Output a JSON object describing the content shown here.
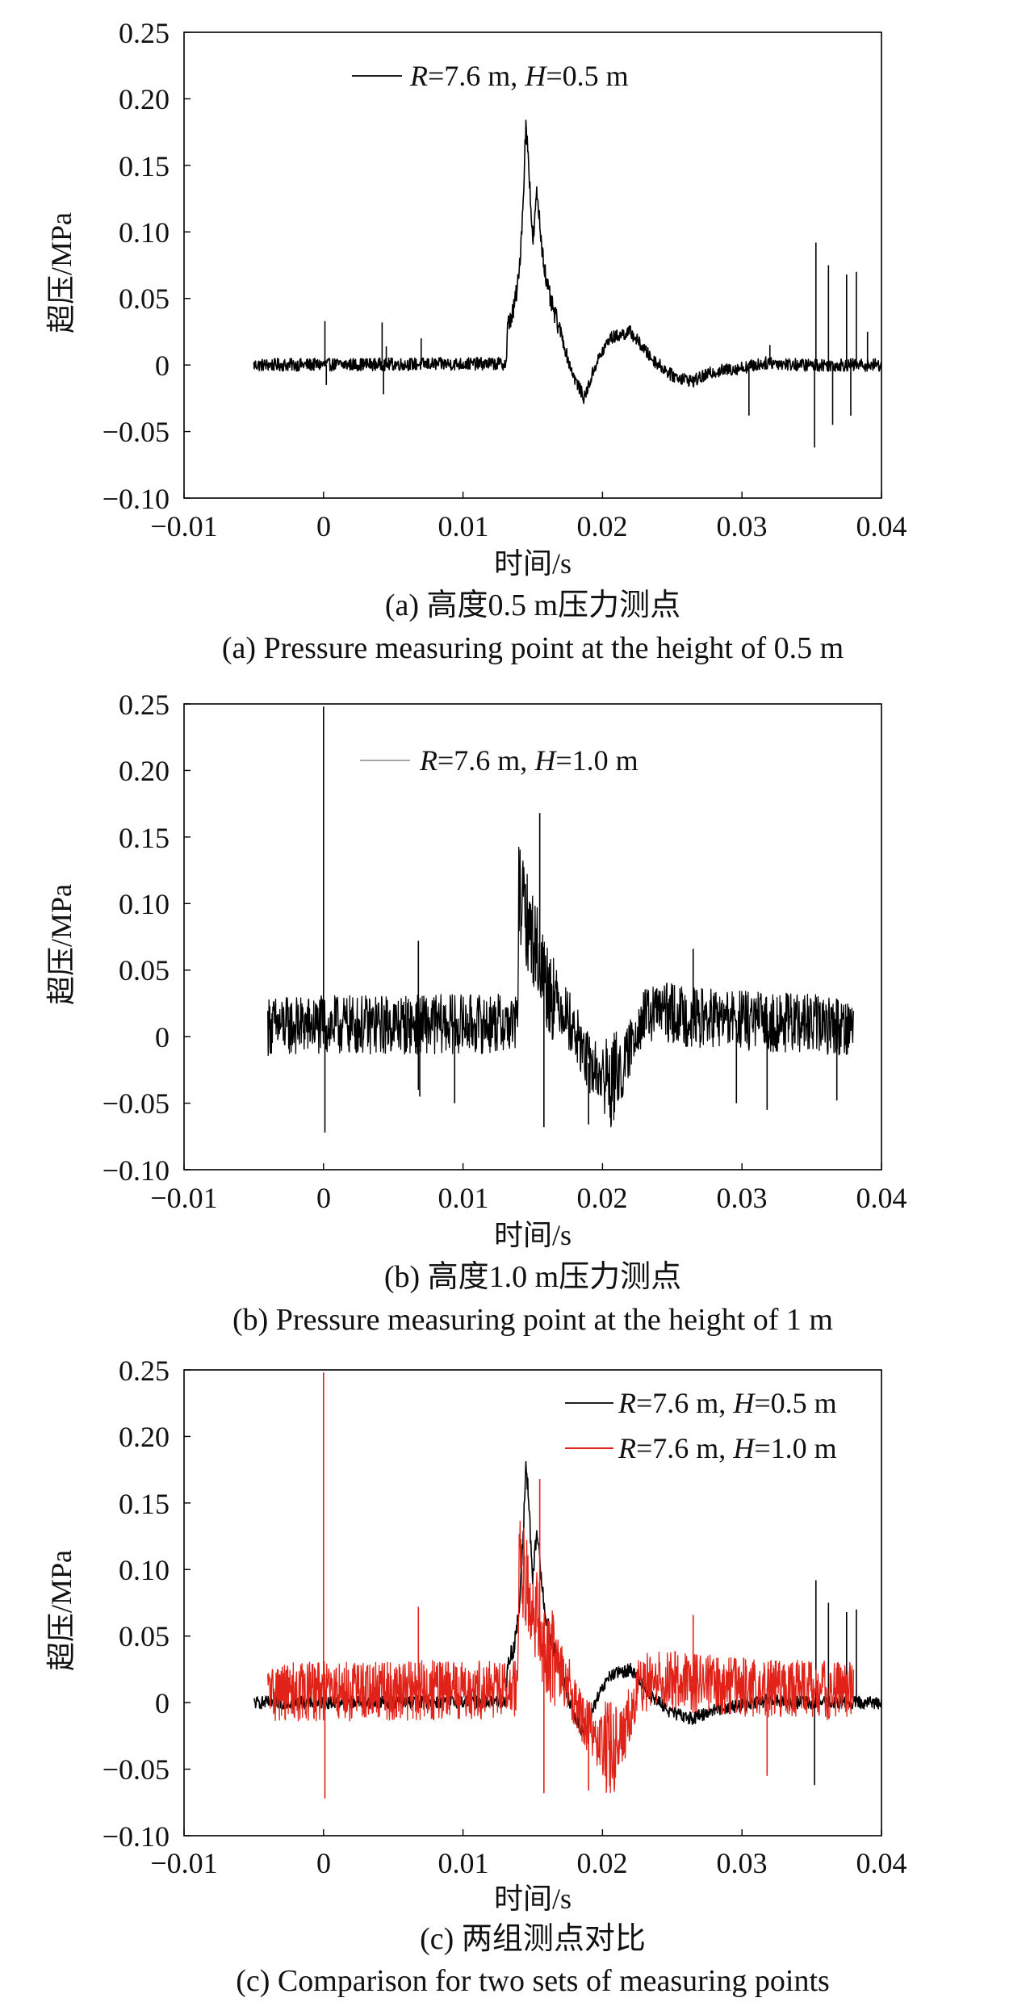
{
  "chart_data": [
    {
      "type": "line",
      "xlabel": "时间/s",
      "ylabel": "超压/MPa",
      "xlim": [
        -0.01,
        0.04
      ],
      "ylim": [
        -0.1,
        0.25
      ],
      "x_ticks": [
        "−0.01",
        "0",
        "0.01",
        "0.02",
        "0.03",
        "0.04"
      ],
      "y_ticks": [
        "0.25",
        "0.20",
        "0.15",
        "0.10",
        "0.05",
        "0",
        "−0.05",
        "−0.10"
      ],
      "caption_cn": "(a) 高度0.5 m压力测点",
      "caption_en": "(a) Pressure measuring point at the height of 0.5 m",
      "legend_position": "top-center",
      "series": [
        {
          "legend": {
            "R": "R",
            "r_val": "=7.6 m, ",
            "H": "H",
            "h_val": "=0.5 m"
          },
          "color": "#000000",
          "noise": 0.003,
          "spikes": [
            [
              0.0001,
              0.033
            ],
            [
              0.0002,
              -0.015
            ],
            [
              0.0042,
              0.032
            ],
            [
              0.0043,
              -0.022
            ],
            [
              0.0045,
              0.014
            ],
            [
              0.007,
              0.02
            ],
            [
              0.0352,
              -0.062
            ],
            [
              0.0353,
              0.092
            ],
            [
              0.0362,
              0.075
            ],
            [
              0.0365,
              -0.045
            ],
            [
              0.0375,
              0.068
            ],
            [
              0.0378,
              -0.038
            ],
            [
              0.0382,
              0.07
            ],
            [
              0.032,
              0.015
            ],
            [
              0.0305,
              -0.038
            ],
            [
              0.039,
              0.025
            ]
          ],
          "points": [
            [
              -0.005,
              0.0
            ],
            [
              0.0131,
              0.001
            ],
            [
              0.0132,
              0.03
            ],
            [
              0.0136,
              0.04
            ],
            [
              0.014,
              0.065
            ],
            [
              0.0143,
              0.12
            ],
            [
              0.0145,
              0.18
            ],
            [
              0.0147,
              0.155
            ],
            [
              0.015,
              0.09
            ],
            [
              0.0153,
              0.13
            ],
            [
              0.0156,
              0.095
            ],
            [
              0.016,
              0.06
            ],
            [
              0.0165,
              0.04
            ],
            [
              0.017,
              0.025
            ],
            [
              0.0175,
              0.005
            ],
            [
              0.018,
              -0.01
            ],
            [
              0.0187,
              -0.025
            ],
            [
              0.0195,
              0.0
            ],
            [
              0.0205,
              0.02
            ],
            [
              0.022,
              0.025
            ],
            [
              0.0235,
              0.005
            ],
            [
              0.025,
              -0.008
            ],
            [
              0.0265,
              -0.012
            ],
            [
              0.028,
              -0.005
            ],
            [
              0.03,
              -0.002
            ],
            [
              0.032,
              0.002
            ],
            [
              0.034,
              0.0
            ],
            [
              0.04,
              0.0
            ]
          ]
        }
      ]
    },
    {
      "type": "line",
      "xlabel": "时间/s",
      "ylabel": "超压/MPa",
      "xlim": [
        -0.01,
        0.04
      ],
      "ylim": [
        -0.1,
        0.25
      ],
      "x_ticks": [
        "−0.01",
        "0",
        "0.01",
        "0.02",
        "0.03",
        "0.04"
      ],
      "y_ticks": [
        "0.25",
        "0.20",
        "0.15",
        "0.10",
        "0.05",
        "0",
        "−0.05",
        "−0.10"
      ],
      "caption_cn": "(b) 高度1.0 m压力测点",
      "caption_en": "(b) Pressure measuring point at the height of 1 m",
      "legend_position": "top-center",
      "series": [
        {
          "legend": {
            "R": "R",
            "r_val": "=7.6 m, ",
            "H": "H",
            "h_val": "=1.0 m"
          },
          "color": "#000000",
          "legend_line_color": "#999999",
          "noise": 0.014,
          "spikes": [
            [
              0.0,
              0.248
            ],
            [
              0.0001,
              -0.072
            ],
            [
              0.0068,
              0.072
            ],
            [
              0.0069,
              -0.045
            ],
            [
              0.0094,
              -0.05
            ],
            [
              0.0068,
              -0.04
            ],
            [
              0.0155,
              0.168
            ],
            [
              0.0158,
              -0.068
            ],
            [
              0.019,
              -0.066
            ],
            [
              0.0265,
              0.066
            ],
            [
              0.0296,
              -0.05
            ],
            [
              0.0318,
              -0.055
            ],
            [
              0.0368,
              -0.048
            ]
          ],
          "points": [
            [
              -0.004,
              0.008
            ],
            [
              0.0139,
              0.01
            ],
            [
              0.014,
              0.11
            ],
            [
              0.0145,
              0.09
            ],
            [
              0.015,
              0.075
            ],
            [
              0.016,
              0.04
            ],
            [
              0.0175,
              0.015
            ],
            [
              0.019,
              -0.02
            ],
            [
              0.0205,
              -0.035
            ],
            [
              0.0215,
              -0.025
            ],
            [
              0.0225,
              0.01
            ],
            [
              0.024,
              0.02
            ],
            [
              0.026,
              0.015
            ],
            [
              0.03,
              0.012
            ],
            [
              0.038,
              0.008
            ]
          ]
        }
      ]
    },
    {
      "type": "line",
      "xlabel": "时间/s",
      "ylabel": "超压/MPa",
      "xlim": [
        -0.01,
        0.04
      ],
      "ylim": [
        -0.1,
        0.25
      ],
      "x_ticks": [
        "−0.01",
        "0",
        "0.01",
        "0.02",
        "0.03",
        "0.04"
      ],
      "y_ticks": [
        "0.25",
        "0.20",
        "0.15",
        "0.10",
        "0.05",
        "0",
        "−0.05",
        "−0.10"
      ],
      "caption_cn": "(c) 两组测点对比",
      "caption_en": "(c) Comparison for two sets of measuring points",
      "legend_position": "top-right",
      "series": [
        {
          "legend": {
            "R": "R",
            "r_val": "=7.6 m, ",
            "H": "H",
            "h_val": "=0.5 m"
          },
          "color": "#000000",
          "noise": 0.003,
          "spikes": [
            [
              0.0352,
              -0.062
            ],
            [
              0.0353,
              0.092
            ],
            [
              0.0362,
              0.075
            ],
            [
              0.0375,
              0.068
            ],
            [
              0.0382,
              0.07
            ]
          ],
          "points": [
            [
              -0.005,
              0.0
            ],
            [
              0.0131,
              0.001
            ],
            [
              0.0132,
              0.03
            ],
            [
              0.0136,
              0.04
            ],
            [
              0.014,
              0.065
            ],
            [
              0.0143,
              0.12
            ],
            [
              0.0145,
              0.18
            ],
            [
              0.0147,
              0.155
            ],
            [
              0.015,
              0.09
            ],
            [
              0.0153,
              0.13
            ],
            [
              0.0156,
              0.095
            ],
            [
              0.016,
              0.06
            ],
            [
              0.0165,
              0.04
            ],
            [
              0.017,
              0.025
            ],
            [
              0.0175,
              0.005
            ],
            [
              0.018,
              -0.01
            ],
            [
              0.0187,
              -0.025
            ],
            [
              0.0195,
              0.0
            ],
            [
              0.0205,
              0.02
            ],
            [
              0.022,
              0.025
            ],
            [
              0.0235,
              0.005
            ],
            [
              0.025,
              -0.008
            ],
            [
              0.0265,
              -0.012
            ],
            [
              0.028,
              -0.005
            ],
            [
              0.03,
              -0.002
            ],
            [
              0.032,
              0.002
            ],
            [
              0.034,
              0.0
            ],
            [
              0.04,
              0.0
            ]
          ]
        },
        {
          "legend": {
            "R": "R",
            "r_val": "=7.6 m, ",
            "H": "H",
            "h_val": "=1.0 m"
          },
          "color": "#e02218",
          "noise": 0.014,
          "spikes": [
            [
              0.0,
              0.248
            ],
            [
              0.0001,
              -0.072
            ],
            [
              0.0068,
              0.072
            ],
            [
              0.0155,
              0.168
            ],
            [
              0.0158,
              -0.068
            ],
            [
              0.019,
              -0.066
            ],
            [
              0.0265,
              0.066
            ],
            [
              0.0318,
              -0.055
            ]
          ],
          "points": [
            [
              -0.004,
              0.008
            ],
            [
              0.0139,
              0.01
            ],
            [
              0.014,
              0.11
            ],
            [
              0.0145,
              0.09
            ],
            [
              0.015,
              0.075
            ],
            [
              0.016,
              0.04
            ],
            [
              0.0175,
              0.015
            ],
            [
              0.019,
              -0.02
            ],
            [
              0.0205,
              -0.035
            ],
            [
              0.0215,
              -0.025
            ],
            [
              0.0225,
              0.01
            ],
            [
              0.024,
              0.02
            ],
            [
              0.026,
              0.015
            ],
            [
              0.03,
              0.012
            ],
            [
              0.038,
              0.008
            ]
          ]
        }
      ]
    }
  ]
}
